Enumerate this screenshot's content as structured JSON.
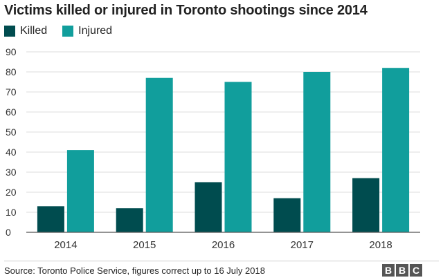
{
  "colors": {
    "killed": "#004c4f",
    "injured": "#119e9c",
    "grid": "#dddddd",
    "axis": "#555555"
  },
  "chart_data": {
    "type": "bar",
    "title": "Victims killed or injured in Toronto shootings since 2014",
    "categories": [
      "2014",
      "2015",
      "2016",
      "2017",
      "2018"
    ],
    "series": [
      {
        "name": "Killed",
        "values": [
          13,
          12,
          25,
          17,
          27
        ]
      },
      {
        "name": "Injured",
        "values": [
          41,
          77,
          75,
          80,
          82
        ]
      }
    ],
    "ylim": [
      0,
      90
    ],
    "yticks": [
      0,
      10,
      20,
      30,
      40,
      50,
      60,
      70,
      80,
      90
    ],
    "grid": true,
    "legend": "top-left",
    "xlabel": "",
    "ylabel": ""
  },
  "footer": {
    "source": "Source: Toronto Police Service, figures correct up to 16 July 2018",
    "brand_letters": [
      "B",
      "B",
      "C"
    ]
  }
}
